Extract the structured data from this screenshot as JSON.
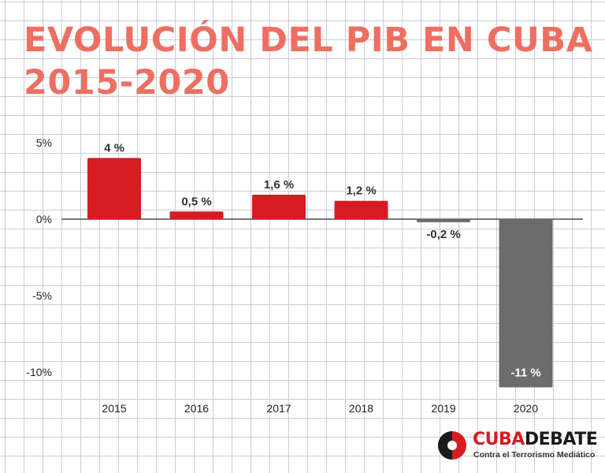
{
  "title": {
    "line1": "EVOLUCIÓN DEL PIB EN CUBA",
    "line2": "2015-2020"
  },
  "colors": {
    "title": "#ee6f62",
    "positive_bar": "#d51c23",
    "negative_bar": "#6c6c6c",
    "background": "#ffffff",
    "grid": "#c9ced6"
  },
  "chart_data": {
    "type": "bar",
    "categories": [
      "2015",
      "2016",
      "2017",
      "2018",
      "2019",
      "2020"
    ],
    "values": [
      4,
      0.5,
      1.6,
      1.2,
      -0.2,
      -11
    ],
    "data_labels": [
      "4 %",
      "0,5 %",
      "1,6 %",
      "1,2 %",
      "-0,2 %",
      "-11 %"
    ],
    "y_ticks": [
      5,
      0,
      -5,
      -10
    ],
    "y_tick_labels": [
      "5%",
      "0%",
      "-5%",
      "-10%"
    ],
    "ylim": [
      -11,
      5
    ],
    "xlabel": "",
    "ylabel": "",
    "grid": true,
    "legend": "none"
  },
  "logo": {
    "name_part1": "CUBA",
    "name_part2": "DEBATE",
    "tagline": "Contra el Terrorismo Mediático"
  }
}
